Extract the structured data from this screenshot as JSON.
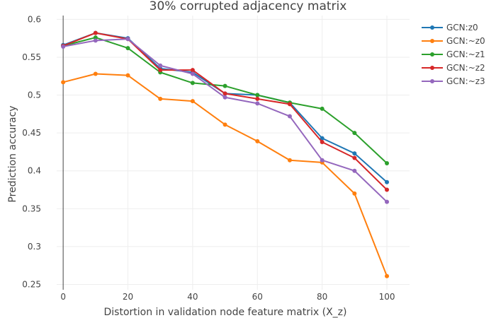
{
  "chart_data": {
    "type": "line",
    "title": "30% corrupted adjacency matrix",
    "xlabel": "Distortion in validation node feature matrix (X_z)",
    "ylabel": "Prediction accuracy",
    "xlim": [
      -2,
      107
    ],
    "ylim": [
      0.243,
      0.605
    ],
    "xticks": [
      0,
      20,
      40,
      60,
      80,
      100
    ],
    "xtick_labels": [
      "0",
      "20",
      "40",
      "60",
      "80",
      "100"
    ],
    "yticks": [
      0.25,
      0.3,
      0.35,
      0.4,
      0.45,
      0.5,
      0.55,
      0.6
    ],
    "ytick_labels": [
      "0.25",
      "0.3",
      "0.35",
      "0.4",
      "0.45",
      "0.5",
      "0.55",
      "0.6"
    ],
    "grid": true,
    "legend_position": "top-right",
    "x": [
      0,
      10,
      20,
      30,
      40,
      50,
      60,
      70,
      80,
      90,
      100
    ],
    "series": [
      {
        "name": "GCN:z0",
        "color": "#1f77b4",
        "values": [
          0.566,
          0.582,
          0.575,
          0.535,
          0.53,
          0.502,
          0.5,
          0.49,
          0.443,
          0.423,
          0.385
        ]
      },
      {
        "name": "GCN:~z0",
        "color": "#ff7f0e",
        "values": [
          0.517,
          0.528,
          0.526,
          0.495,
          0.492,
          0.461,
          0.439,
          0.414,
          0.411,
          0.37,
          0.261
        ]
      },
      {
        "name": "GCN:~z1",
        "color": "#2ca02c",
        "values": [
          0.565,
          0.576,
          0.562,
          0.53,
          0.516,
          0.512,
          0.5,
          0.49,
          0.482,
          0.45,
          0.41
        ]
      },
      {
        "name": "GCN:~z2",
        "color": "#d62728",
        "values": [
          0.565,
          0.582,
          0.574,
          0.533,
          0.533,
          0.502,
          0.495,
          0.488,
          0.438,
          0.417,
          0.375
        ]
      },
      {
        "name": "GCN:~z3",
        "color": "#9467bd",
        "values": [
          0.564,
          0.572,
          0.574,
          0.539,
          0.528,
          0.497,
          0.489,
          0.472,
          0.414,
          0.4,
          0.359
        ]
      }
    ]
  }
}
